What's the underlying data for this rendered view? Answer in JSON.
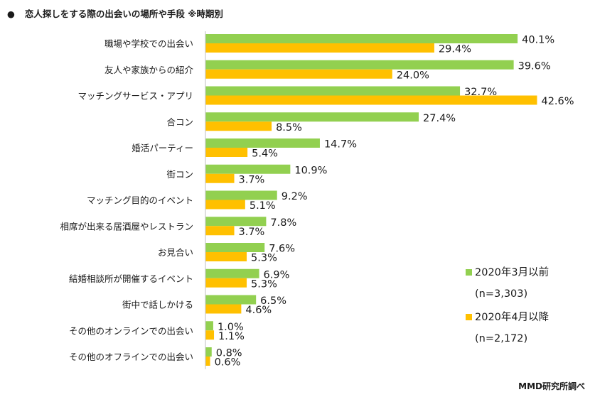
{
  "title": "恋人探しをする際の出会いの場所や手段 ※時期別",
  "title_bullet": "●",
  "credit": "MMD研究所調べ",
  "chart_data": {
    "type": "bar",
    "orientation": "horizontal",
    "title": "恋人探しをする際の出会いの場所や手段 ※時期別",
    "categories": [
      "職場や学校での出会い",
      "友人や家族からの紹介",
      "マッチングサービス・アプリ",
      "合コン",
      "婚活パーティー",
      "街コン",
      "マッチング目的のイベント",
      "相席が出来る居酒屋やレストラン",
      "お見合い",
      "結婚相談所が開催するイベント",
      "街中で話しかける",
      "その他のオンラインでの出会い",
      "その他のオフラインでの出会い"
    ],
    "series": [
      {
        "name": "2020年3月以前",
        "sample": "(n=3,303)",
        "color": "#92D050",
        "values": [
          40.1,
          39.6,
          32.7,
          27.4,
          14.7,
          10.9,
          9.2,
          7.8,
          7.6,
          6.9,
          6.5,
          1.0,
          0.8
        ]
      },
      {
        "name": "2020年4月以降",
        "sample": "(n=2,172)",
        "color": "#FFC000",
        "values": [
          29.4,
          24.0,
          42.6,
          8.5,
          5.4,
          3.7,
          5.1,
          3.7,
          5.3,
          5.3,
          4.6,
          1.1,
          0.6
        ]
      }
    ],
    "unit": "%",
    "xlim": [
      0,
      45
    ],
    "grid": false,
    "legend_position": "bottom-right"
  }
}
